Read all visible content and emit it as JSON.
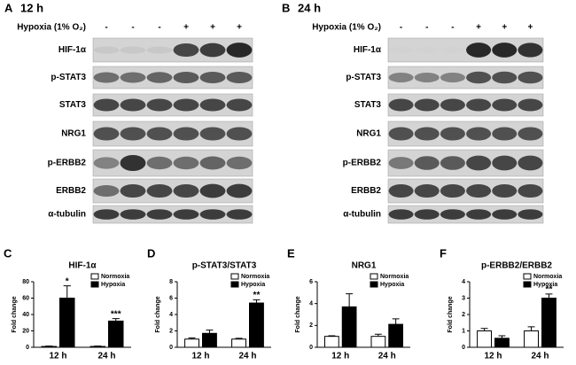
{
  "blots": [
    {
      "panel": "A",
      "time": "12 h",
      "condition_label": "Hypoxia (1% O₂)",
      "conditions": [
        "-",
        "-",
        "-",
        "+",
        "+",
        "+"
      ],
      "rows": [
        "HIF-1α",
        "p-STAT3",
        "STAT3",
        "NRG1",
        "p-ERBB2",
        "ERBB2",
        "α-tubulin"
      ]
    },
    {
      "panel": "B",
      "time": "24 h",
      "condition_label": "Hypoxia (1% O₂)",
      "conditions": [
        "-",
        "-",
        "-",
        "+",
        "+",
        "+"
      ],
      "rows": [
        "HIF-1α",
        "p-STAT3",
        "STAT3",
        "NRG1",
        "p-ERBB2",
        "ERBB2",
        "α-tubulin"
      ]
    }
  ],
  "chart_data": [
    {
      "type": "bar",
      "panel": "C",
      "title": "HIF-1α",
      "y_label": "Fold change",
      "categories": [
        "12 h",
        "24 h"
      ],
      "series": [
        {
          "name": "Normoxia",
          "color": "#ffffff",
          "values": [
            1,
            1
          ],
          "errors": [
            0.5,
            0.5
          ]
        },
        {
          "name": "Hypoxia",
          "color": "#000000",
          "values": [
            60,
            32
          ],
          "errors": [
            15,
            3
          ]
        }
      ],
      "ylim": [
        0,
        80
      ],
      "yticks": [
        0,
        20,
        40,
        60,
        80
      ],
      "annotations": [
        {
          "text": "*",
          "category": "12 h",
          "series": "Hypoxia"
        },
        {
          "text": "***",
          "category": "24 h",
          "series": "Hypoxia"
        }
      ]
    },
    {
      "type": "bar",
      "panel": "D",
      "title": "p-STAT3/STAT3",
      "y_label": "Fold change",
      "categories": [
        "12 h",
        "24 h"
      ],
      "series": [
        {
          "name": "Normoxia",
          "color": "#ffffff",
          "values": [
            1,
            1
          ],
          "errors": [
            0.15,
            0.1
          ]
        },
        {
          "name": "Hypoxia",
          "color": "#000000",
          "values": [
            1.7,
            5.4
          ],
          "errors": [
            0.4,
            0.4
          ]
        }
      ],
      "ylim": [
        0,
        8
      ],
      "yticks": [
        0,
        2,
        4,
        6,
        8
      ],
      "annotations": [
        {
          "text": "**",
          "category": "24 h",
          "series": "Hypoxia"
        }
      ]
    },
    {
      "type": "bar",
      "panel": "E",
      "title": "NRG1",
      "y_label": "Fold change",
      "categories": [
        "12 h",
        "24 h"
      ],
      "series": [
        {
          "name": "Normoxia",
          "color": "#ffffff",
          "values": [
            1,
            1
          ],
          "errors": [
            0.05,
            0.2
          ]
        },
        {
          "name": "Hypoxia",
          "color": "#000000",
          "values": [
            3.7,
            2.1
          ],
          "errors": [
            1.2,
            0.5
          ]
        }
      ],
      "ylim": [
        0,
        6
      ],
      "yticks": [
        0,
        2,
        4,
        6
      ],
      "annotations": []
    },
    {
      "type": "bar",
      "panel": "F",
      "title": "p-ERBB2/ERBB2",
      "y_label": "Fold change",
      "categories": [
        "12 h",
        "24 h"
      ],
      "series": [
        {
          "name": "Normoxia",
          "color": "#ffffff",
          "values": [
            1,
            1
          ],
          "errors": [
            0.15,
            0.25
          ]
        },
        {
          "name": "Hypoxia",
          "color": "#000000",
          "values": [
            0.55,
            3
          ],
          "errors": [
            0.15,
            0.25
          ]
        }
      ],
      "ylim": [
        0,
        4
      ],
      "yticks": [
        0,
        1,
        2,
        3,
        4
      ],
      "annotations": [
        {
          "text": "**",
          "category": "24 h",
          "series": "Hypoxia"
        }
      ]
    }
  ]
}
